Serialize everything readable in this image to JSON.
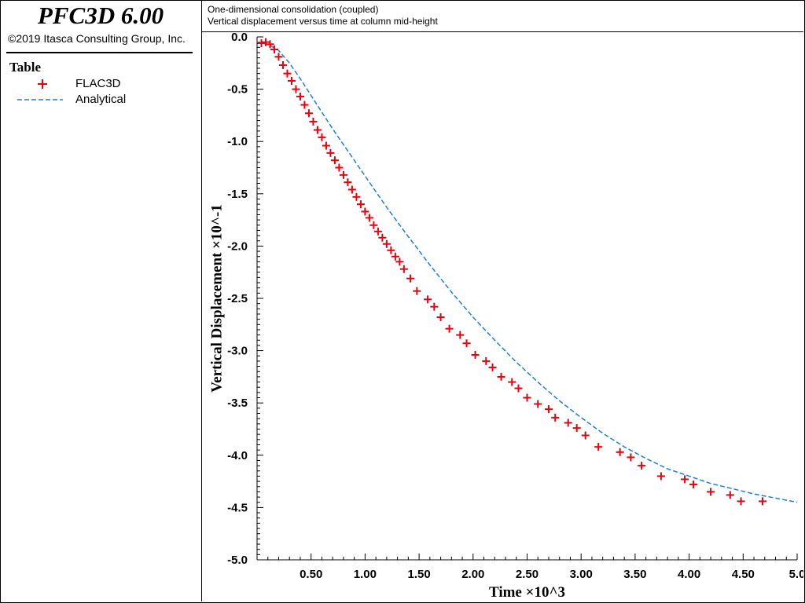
{
  "app": {
    "name": "PFC3D 6.00",
    "copyright": "©2019 Itasca Consulting Group, Inc."
  },
  "legend": {
    "title": "Table",
    "items": [
      {
        "label": "FLAC3D",
        "symbol": "plus-icon",
        "color": "#e8000b"
      },
      {
        "label": "Analytical",
        "symbol": "dashed-line-icon",
        "color": "#1e7fd9"
      }
    ]
  },
  "plot_title": {
    "line1": "One-dimensional consolidation (coupled)",
    "line2": "Vertical displacement versus time at column mid-height"
  },
  "chart_data": {
    "type": "scatter",
    "xlabel": "Time ×10^3",
    "ylabel": "Vertical Displacement ×10^-1",
    "xlim": [
      0,
      5.0
    ],
    "ylim": [
      -5.0,
      0.0
    ],
    "x_ticks": [
      0.5,
      1.0,
      1.5,
      2.0,
      2.5,
      3.0,
      3.5,
      4.0,
      4.5,
      5.0
    ],
    "x_tick_labels": [
      "0.50",
      "1.00",
      "1.50",
      "2.00",
      "2.50",
      "3.00",
      "3.50",
      "4.00",
      "4.50",
      "5.0"
    ],
    "y_ticks": [
      0.0,
      -0.5,
      -1.0,
      -1.5,
      -2.0,
      -2.5,
      -3.0,
      -3.5,
      -4.0,
      -4.5,
      -5.0
    ],
    "y_tick_labels": [
      "0.0",
      "-0.5",
      "-1.0",
      "-1.5",
      "-2.0",
      "-2.5",
      "-3.0",
      "-3.5",
      "-4.0",
      "-4.5",
      "-5.0"
    ],
    "grid": false,
    "series": [
      {
        "name": "FLAC3D",
        "style": "marker-plus",
        "color": "#e8000b",
        "x": [
          0.04,
          0.08,
          0.12,
          0.16,
          0.2,
          0.24,
          0.28,
          0.32,
          0.36,
          0.4,
          0.44,
          0.48,
          0.52,
          0.56,
          0.6,
          0.64,
          0.68,
          0.72,
          0.76,
          0.8,
          0.84,
          0.88,
          0.92,
          0.96,
          1.0,
          1.04,
          1.08,
          1.12,
          1.16,
          1.2,
          1.24,
          1.28,
          1.32,
          1.36,
          1.42,
          1.48,
          1.58,
          1.64,
          1.7,
          1.78,
          1.88,
          1.94,
          2.02,
          2.12,
          2.18,
          2.26,
          2.36,
          2.42,
          2.5,
          2.6,
          2.7,
          2.76,
          2.88,
          2.96,
          3.04,
          3.16,
          3.36,
          3.46,
          3.56,
          3.74,
          3.96,
          4.04,
          4.2,
          4.38,
          4.48,
          4.68
        ],
        "y": [
          -0.06,
          -0.05,
          -0.07,
          -0.12,
          -0.19,
          -0.27,
          -0.35,
          -0.42,
          -0.5,
          -0.57,
          -0.65,
          -0.73,
          -0.81,
          -0.89,
          -0.96,
          -1.04,
          -1.11,
          -1.18,
          -1.25,
          -1.32,
          -1.39,
          -1.46,
          -1.53,
          -1.6,
          -1.67,
          -1.73,
          -1.8,
          -1.86,
          -1.92,
          -1.98,
          -2.04,
          -2.1,
          -2.15,
          -2.22,
          -2.31,
          -2.43,
          -2.51,
          -2.58,
          -2.68,
          -2.79,
          -2.85,
          -2.93,
          -3.04,
          -3.1,
          -3.16,
          -3.25,
          -3.3,
          -3.36,
          -3.45,
          -3.51,
          -3.56,
          -3.64,
          -3.69,
          -3.74,
          -3.81,
          -3.92,
          -3.97,
          -4.02,
          -4.1,
          -4.2,
          -4.23,
          -4.28,
          -4.35,
          -4.38,
          -4.44,
          -4.44
        ]
      },
      {
        "name": "Analytical",
        "style": "dashed-line",
        "color": "#1e7fd9",
        "x": [
          0.0,
          0.1,
          0.2,
          0.3,
          0.4,
          0.5,
          0.6,
          0.7,
          0.8,
          0.9,
          1.0,
          1.2,
          1.4,
          1.6,
          1.8,
          2.0,
          2.2,
          2.4,
          2.6,
          2.8,
          3.0,
          3.2,
          3.4,
          3.6,
          3.8,
          4.0,
          4.2,
          4.4,
          4.6,
          4.8,
          5.0
        ],
        "y": [
          -0.05,
          -0.07,
          -0.13,
          -0.25,
          -0.4,
          -0.56,
          -0.72,
          -0.88,
          -1.03,
          -1.18,
          -1.33,
          -1.63,
          -1.91,
          -2.18,
          -2.44,
          -2.68,
          -2.9,
          -3.11,
          -3.3,
          -3.48,
          -3.64,
          -3.79,
          -3.92,
          -4.03,
          -4.13,
          -4.2,
          -4.27,
          -4.32,
          -4.37,
          -4.41,
          -4.45
        ]
      }
    ]
  }
}
